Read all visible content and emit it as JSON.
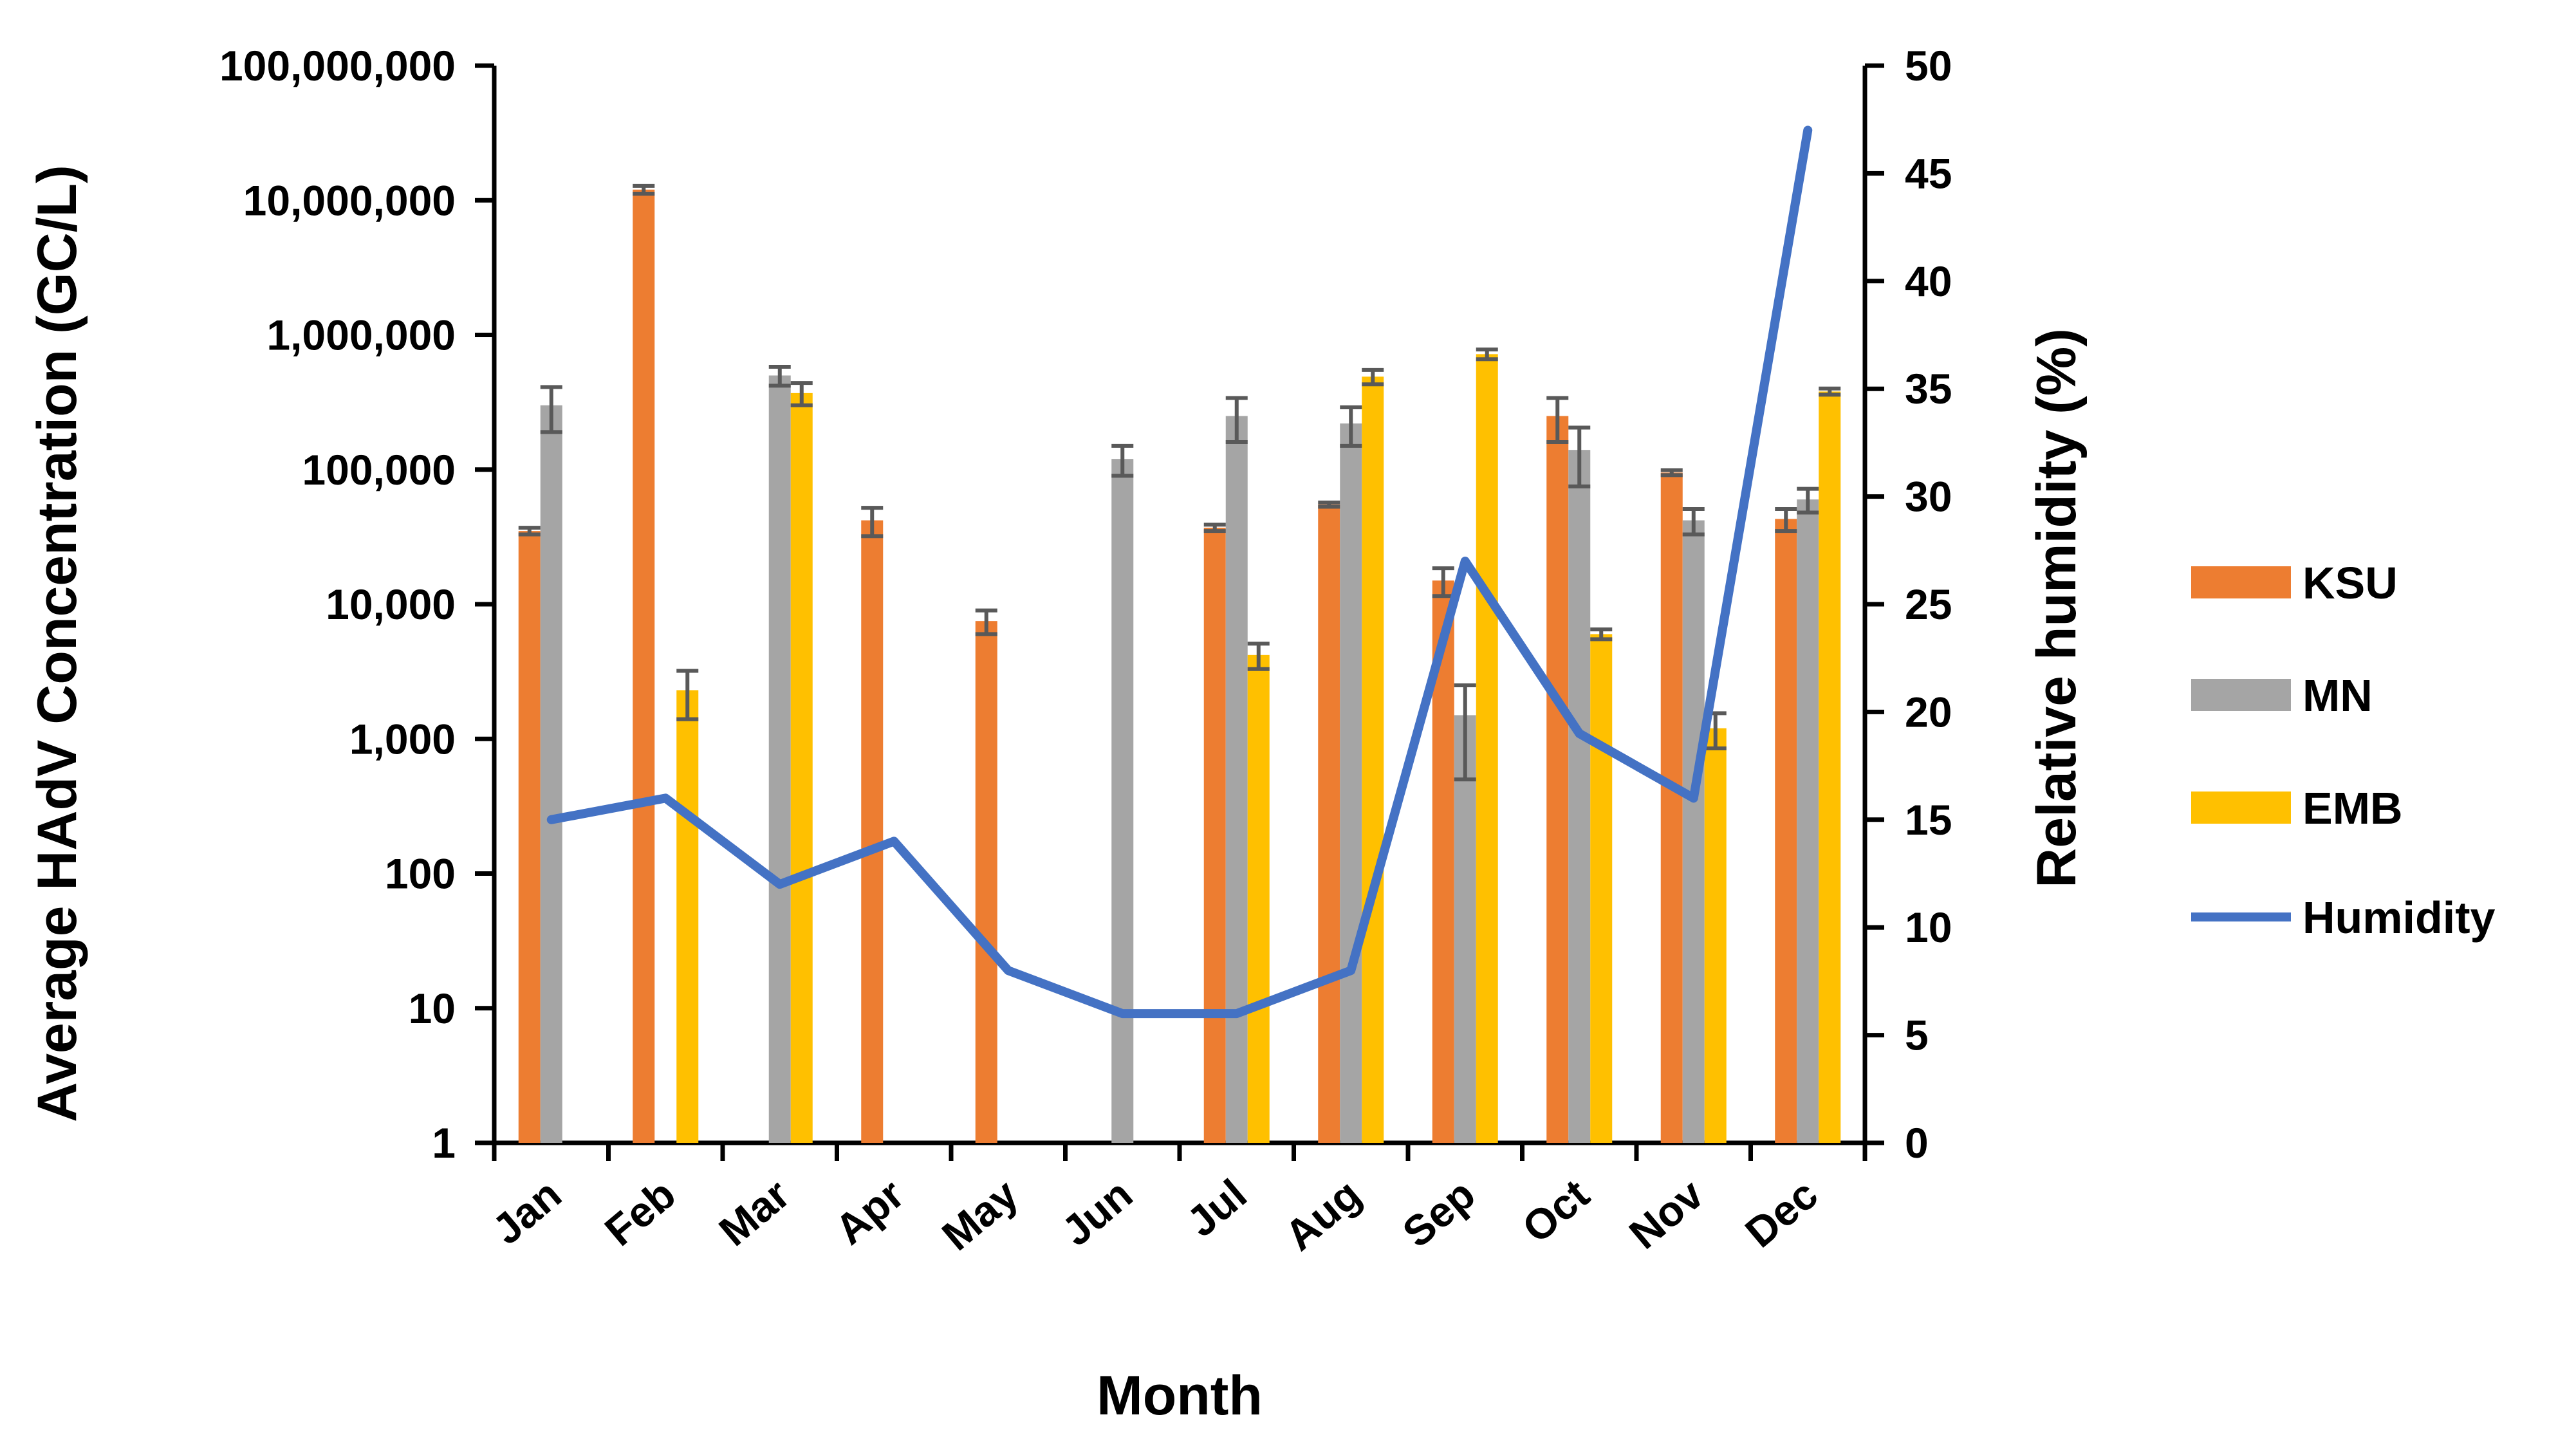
{
  "chart_data": {
    "type": "bar",
    "combo": "bar + line (secondary axis)",
    "categories": [
      "Jan",
      "Feb",
      "Mar",
      "Apr",
      "May",
      "Jun",
      "Jul",
      "Aug",
      "Sep",
      "Oct",
      "Nov",
      "Dec"
    ],
    "series": [
      {
        "name": "KSU",
        "type": "bar",
        "axis": "left",
        "color": "#ED7D31",
        "values": [
          35000,
          12000000,
          null,
          42000,
          7500,
          null,
          37000,
          55000,
          15000,
          250000,
          95000,
          43000
        ],
        "error": [
          2000,
          800000,
          null,
          10000,
          1500,
          null,
          2000,
          2000,
          3500,
          90000,
          4000,
          8000
        ]
      },
      {
        "name": "MN",
        "type": "bar",
        "axis": "left",
        "color": "#A5A5A5",
        "values": [
          300000,
          null,
          500000,
          null,
          null,
          120000,
          250000,
          220000,
          1500,
          140000,
          42000,
          60000
        ],
        "error": [
          110000,
          null,
          80000,
          null,
          null,
          30000,
          90000,
          70000,
          1000,
          65000,
          9000,
          12000
        ]
      },
      {
        "name": "EMB",
        "type": "bar",
        "axis": "left",
        "color": "#FFC000",
        "values": [
          null,
          2300,
          370000,
          null,
          null,
          null,
          4200,
          490000,
          720000,
          6000,
          1200,
          380000
        ],
        "error": [
          null,
          900,
          70000,
          null,
          null,
          null,
          900,
          60000,
          60000,
          500,
          350,
          20000
        ]
      },
      {
        "name": "Humidity",
        "type": "line",
        "axis": "right",
        "color": "#4472C4",
        "values": [
          15,
          16,
          12,
          14,
          8,
          6,
          6,
          8,
          27,
          19,
          16,
          47
        ]
      }
    ],
    "y_left": {
      "label": "Average HAdV Concentration (GC/L)",
      "scale": "log",
      "range": [
        1,
        100000000
      ],
      "ticks": [
        "1",
        "10",
        "100",
        "1,000",
        "10,000",
        "100,000",
        "1,000,000",
        "10,000,000",
        "100,000,000"
      ]
    },
    "y_right": {
      "label": "Relative humidity (%)",
      "scale": "linear",
      "range": [
        0,
        50
      ],
      "ticks": [
        "0",
        "5",
        "10",
        "15",
        "20",
        "25",
        "30",
        "35",
        "40",
        "45",
        "50"
      ]
    },
    "xlabel": "Month",
    "legend": {
      "position": "right",
      "entries": [
        "KSU",
        "MN",
        "EMB",
        "Humidity"
      ]
    },
    "grid": false
  }
}
